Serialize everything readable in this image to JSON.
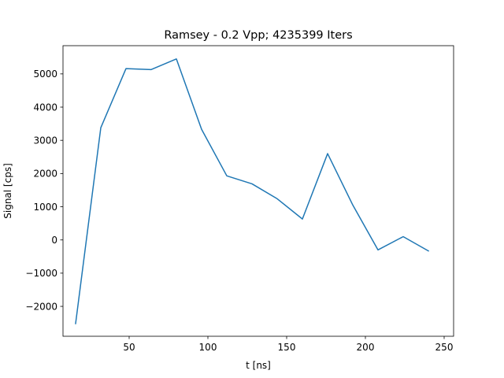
{
  "chart_data": {
    "type": "line",
    "title": "Ramsey - 0.2 Vpp; 4235399 Iters",
    "xlabel": "t [ns]",
    "ylabel": "Signal [cps]",
    "xlim": [
      8,
      256
    ],
    "ylim": [
      -2900,
      5850
    ],
    "xticks": [
      50,
      100,
      150,
      200,
      250
    ],
    "yticks": [
      -2000,
      -1000,
      0,
      1000,
      2000,
      3000,
      4000,
      5000
    ],
    "grid": false,
    "legend": "none",
    "series": [
      {
        "color": "#1f77b4",
        "x": [
          16,
          32,
          48,
          64,
          80,
          96,
          112,
          128,
          144,
          160,
          176,
          192,
          208,
          224,
          240
        ],
        "y": [
          -2520,
          3380,
          5160,
          5130,
          5450,
          3330,
          1930,
          1690,
          1240,
          630,
          2600,
          1050,
          -300,
          100,
          -330
        ]
      }
    ]
  }
}
